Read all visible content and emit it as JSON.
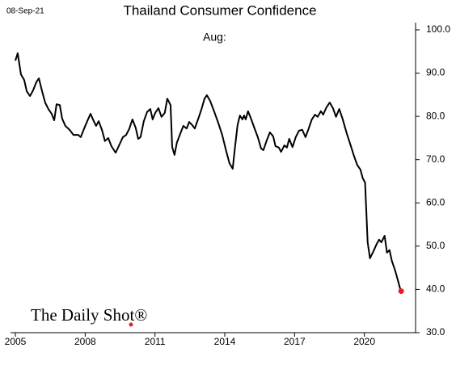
{
  "chart_data": {
    "type": "line",
    "title": "Thailand Consumer Confidence",
    "date_note": "08-Sep-21",
    "annotation": "Aug:",
    "source_logo": "The Daily Shot®",
    "x": [
      2005.0,
      2005.1,
      2005.24,
      2005.38,
      2005.49,
      2005.63,
      2005.76,
      2005.9,
      2006.01,
      2006.15,
      2006.28,
      2006.42,
      2006.56,
      2006.67,
      2006.77,
      2006.91,
      2007.01,
      2007.15,
      2007.33,
      2007.5,
      2007.71,
      2007.81,
      2007.95,
      2008.09,
      2008.23,
      2008.37,
      2008.47,
      2008.58,
      2008.72,
      2008.85,
      2008.99,
      2009.13,
      2009.31,
      2009.44,
      2009.62,
      2009.76,
      2009.9,
      2010.03,
      2010.17,
      2010.28,
      2010.38,
      2010.52,
      2010.66,
      2010.8,
      2010.9,
      2011.01,
      2011.15,
      2011.28,
      2011.42,
      2011.53,
      2011.67,
      2011.74,
      2011.84,
      2011.94,
      2012.08,
      2012.22,
      2012.36,
      2012.47,
      2012.6,
      2012.71,
      2012.85,
      2012.99,
      2013.13,
      2013.23,
      2013.37,
      2013.54,
      2013.72,
      2013.89,
      2014.06,
      2014.2,
      2014.34,
      2014.44,
      2014.55,
      2014.65,
      2014.76,
      2014.83,
      2014.9,
      2015.0,
      2015.14,
      2015.28,
      2015.42,
      2015.56,
      2015.66,
      2015.8,
      2015.94,
      2016.08,
      2016.18,
      2016.32,
      2016.42,
      2016.56,
      2016.67,
      2016.77,
      2016.91,
      2017.05,
      2017.19,
      2017.33,
      2017.47,
      2017.6,
      2017.74,
      2017.88,
      2017.99,
      2018.13,
      2018.23,
      2018.37,
      2018.51,
      2018.65,
      2018.78,
      2018.92,
      2019.06,
      2019.24,
      2019.41,
      2019.55,
      2019.69,
      2019.83,
      2019.93,
      2020.03,
      2020.14,
      2020.24,
      2020.38,
      2020.52,
      2020.63,
      2020.73,
      2020.87,
      2020.97,
      2021.08,
      2021.18,
      2021.32,
      2021.42,
      2021.53,
      2021.58
    ],
    "series": [
      {
        "color": "#000000",
        "values": [
          92.9,
          94.6,
          89.7,
          88.4,
          85.8,
          84.7,
          86.0,
          87.9,
          88.8,
          85.8,
          83.2,
          81.7,
          80.6,
          79.1,
          82.8,
          82.6,
          79.5,
          77.8,
          76.9,
          75.7,
          75.7,
          75.2,
          77.1,
          78.9,
          80.6,
          78.9,
          77.8,
          78.9,
          76.9,
          74.3,
          75.0,
          73.1,
          71.6,
          73.1,
          75.2,
          75.7,
          77.2,
          79.3,
          77.4,
          74.8,
          75.2,
          78.9,
          81.0,
          81.7,
          79.3,
          80.8,
          81.9,
          79.9,
          80.8,
          84.1,
          82.6,
          72.9,
          71.1,
          73.9,
          75.9,
          77.8,
          77.2,
          78.7,
          78.0,
          77.2,
          79.3,
          81.5,
          84.1,
          84.9,
          83.6,
          81.2,
          78.5,
          75.7,
          72.0,
          69.2,
          67.9,
          72.9,
          78.0,
          80.2,
          79.3,
          80.2,
          79.3,
          81.2,
          79.3,
          77.2,
          75.2,
          72.6,
          72.2,
          74.4,
          76.3,
          75.4,
          73.1,
          72.8,
          71.8,
          73.3,
          72.8,
          74.8,
          72.9,
          75.2,
          76.7,
          76.9,
          75.2,
          77.1,
          79.3,
          80.4,
          79.9,
          81.2,
          80.4,
          82.1,
          83.2,
          81.9,
          79.9,
          81.7,
          79.5,
          76.1,
          73.3,
          70.9,
          68.8,
          67.7,
          65.7,
          64.7,
          50.9,
          47.2,
          48.7,
          50.4,
          51.5,
          50.9,
          52.4,
          48.5,
          49.1,
          46.6,
          44.4,
          42.5,
          40.3,
          39.6
        ]
      }
    ],
    "last_point_color": "#e8201c",
    "xlim": [
      2005,
      2022.2
    ],
    "xticks": [
      2005,
      2008,
      2011,
      2014,
      2017,
      2020
    ],
    "ylim": [
      30,
      100
    ],
    "yticks": [
      {
        "value": 30,
        "label": "30.0"
      },
      {
        "value": 40,
        "label": "40.0"
      },
      {
        "value": 50,
        "label": "50.0"
      },
      {
        "value": 60,
        "label": "60.0"
      },
      {
        "value": 70,
        "label": "70.0"
      },
      {
        "value": 80,
        "label": "80.0"
      },
      {
        "value": 90,
        "label": "90.0"
      },
      {
        "value": 100,
        "label": "100.0"
      }
    ],
    "grid": false
  }
}
